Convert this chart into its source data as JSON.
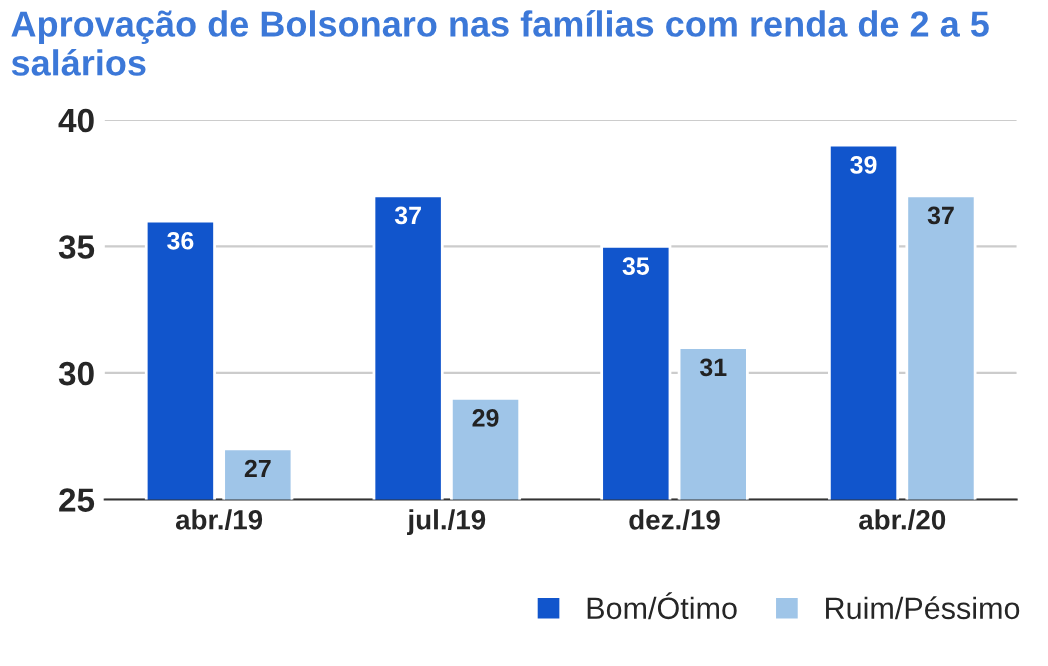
{
  "chart_data": {
    "type": "bar",
    "title": "Aprovação de Bolsonaro nas famílias com renda de 2 a 5 salários",
    "categories": [
      "abr./19",
      "jul./19",
      "dez./19",
      "abr./20"
    ],
    "series": [
      {
        "name": "Bom/Ótimo",
        "color": "#1155cc",
        "values": [
          36,
          37,
          35,
          39
        ]
      },
      {
        "name": "Ruim/Péssimo",
        "color": "#9fc5e8",
        "values": [
          27,
          29,
          31,
          37
        ]
      }
    ],
    "ylim": [
      25,
      40
    ],
    "yticks": [
      25,
      30,
      35,
      40
    ],
    "grid": "y",
    "legend": "bottom right",
    "data_labels": true
  }
}
